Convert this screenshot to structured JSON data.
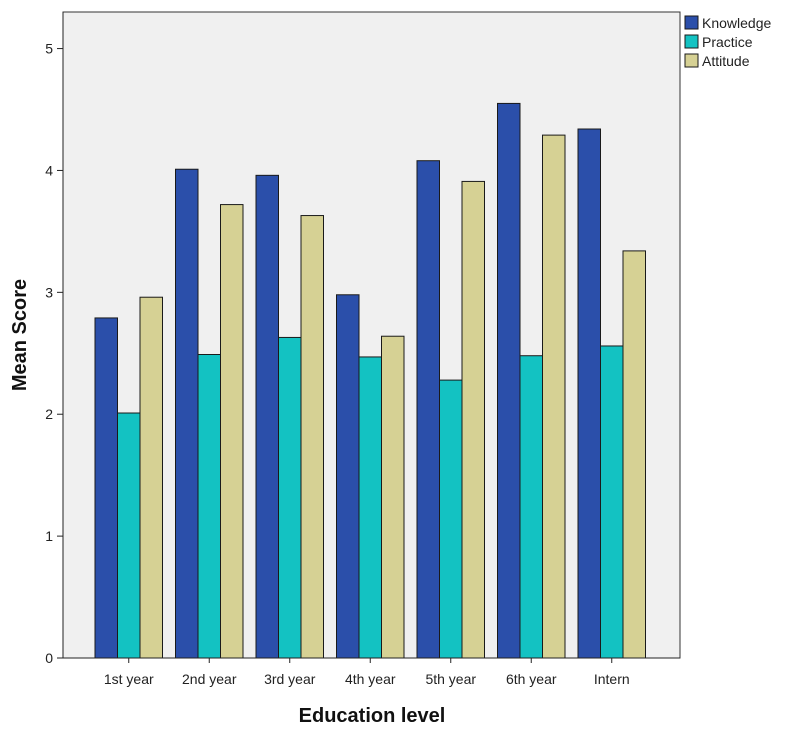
{
  "chart_data": {
    "type": "bar",
    "title": "",
    "xlabel": "Education level",
    "ylabel": "Mean Score",
    "ylim": [
      0,
      5.3
    ],
    "yticks": [
      0,
      1,
      2,
      3,
      4,
      5
    ],
    "grid": false,
    "legend_position": "top-right",
    "categories": [
      "1st year",
      "2nd year",
      "3rd year",
      "4th year",
      "5th year",
      "6th year",
      "Intern"
    ],
    "series": [
      {
        "name": "Knowledge",
        "color": "#2B4FAA",
        "values": [
          2.79,
          4.01,
          3.96,
          2.98,
          4.08,
          4.55,
          4.34
        ]
      },
      {
        "name": "Practice",
        "color": "#13C2C2",
        "values": [
          2.01,
          2.49,
          2.63,
          2.47,
          2.28,
          2.48,
          2.56
        ]
      },
      {
        "name": "Attitude",
        "color": "#D6D194",
        "values": [
          2.96,
          3.72,
          3.63,
          2.64,
          3.91,
          4.29,
          3.34
        ]
      }
    ]
  }
}
